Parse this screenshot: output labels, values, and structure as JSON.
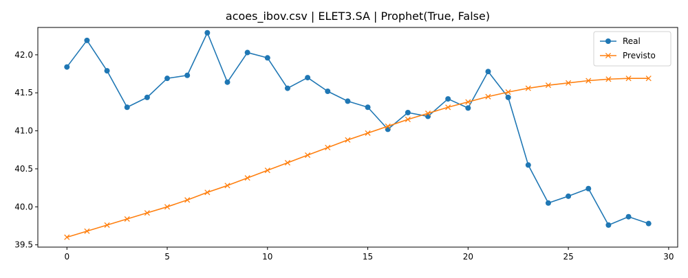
{
  "chart_data": {
    "type": "line",
    "title": "acoes_ibov.csv | ELET3.SA | Prophet(True, False)",
    "xlabel": "",
    "ylabel": "",
    "xlim": [
      -1.45,
      30.45
    ],
    "ylim": [
      39.47,
      42.36
    ],
    "x_ticks": [
      0,
      5,
      10,
      15,
      20,
      25,
      30
    ],
    "y_ticks": [
      39.5,
      40.0,
      40.5,
      41.0,
      41.5,
      42.0
    ],
    "grid": false,
    "legend_position": "top-right",
    "x": [
      0,
      1,
      2,
      3,
      4,
      5,
      6,
      7,
      8,
      9,
      10,
      11,
      12,
      13,
      14,
      15,
      16,
      17,
      18,
      19,
      20,
      21,
      22,
      23,
      24,
      25,
      26,
      27,
      28,
      29
    ],
    "series": [
      {
        "name": "Real",
        "color": "#1f77b4",
        "marker": "circle",
        "values": [
          41.84,
          42.19,
          41.79,
          41.31,
          41.44,
          41.69,
          41.73,
          42.29,
          41.64,
          42.03,
          41.96,
          41.56,
          41.7,
          41.52,
          41.39,
          41.31,
          41.02,
          41.24,
          41.19,
          41.42,
          41.3,
          41.78,
          41.44,
          40.55,
          40.05,
          40.14,
          40.24,
          39.76,
          39.87,
          39.78
        ]
      },
      {
        "name": "Previsto",
        "color": "#ff7f0e",
        "marker": "x",
        "values": [
          39.6,
          39.68,
          39.76,
          39.84,
          39.92,
          40.0,
          40.09,
          40.19,
          40.28,
          40.38,
          40.48,
          40.58,
          40.68,
          40.78,
          40.88,
          40.97,
          41.06,
          41.15,
          41.23,
          41.31,
          41.38,
          41.45,
          41.51,
          41.56,
          41.6,
          41.63,
          41.66,
          41.68,
          41.69,
          41.69
        ]
      }
    ]
  }
}
